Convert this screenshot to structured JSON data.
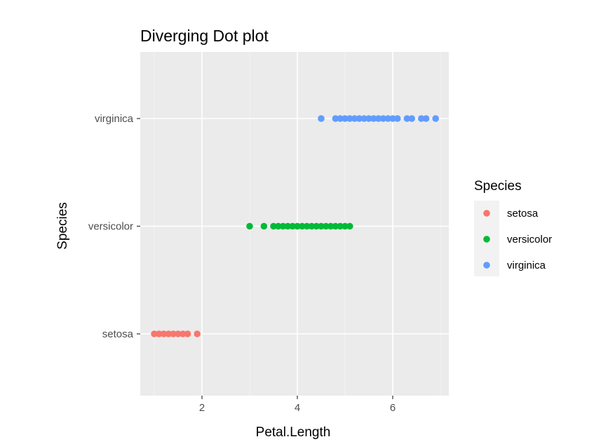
{
  "chart_data": {
    "type": "scatter",
    "title": "Diverging Dot plot",
    "xlabel": "Petal.Length",
    "ylabel": "Species",
    "xlim": [
      0.7,
      7.2
    ],
    "x_ticks": [
      2,
      4,
      6
    ],
    "categories": [
      "setosa",
      "versicolor",
      "virginica"
    ],
    "grid": true,
    "legend_position": "right",
    "legend_title": "Species",
    "background": "#ebebeb",
    "series": [
      {
        "name": "setosa",
        "color": "#f8766d",
        "category": "setosa",
        "x": [
          1.0,
          1.1,
          1.2,
          1.3,
          1.4,
          1.5,
          1.6,
          1.7,
          1.9
        ]
      },
      {
        "name": "versicolor",
        "color": "#00ba38",
        "category": "versicolor",
        "x": [
          3.0,
          3.3,
          3.5,
          3.6,
          3.7,
          3.8,
          3.9,
          4.0,
          4.1,
          4.2,
          4.3,
          4.4,
          4.5,
          4.6,
          4.7,
          4.8,
          4.9,
          5.0,
          5.1
        ]
      },
      {
        "name": "virginica",
        "color": "#619cff",
        "category": "virginica",
        "x": [
          4.5,
          4.8,
          4.9,
          5.0,
          5.1,
          5.2,
          5.3,
          5.4,
          5.5,
          5.6,
          5.7,
          5.8,
          5.9,
          6.0,
          6.1,
          6.3,
          6.4,
          6.6,
          6.7,
          6.9
        ]
      }
    ]
  }
}
